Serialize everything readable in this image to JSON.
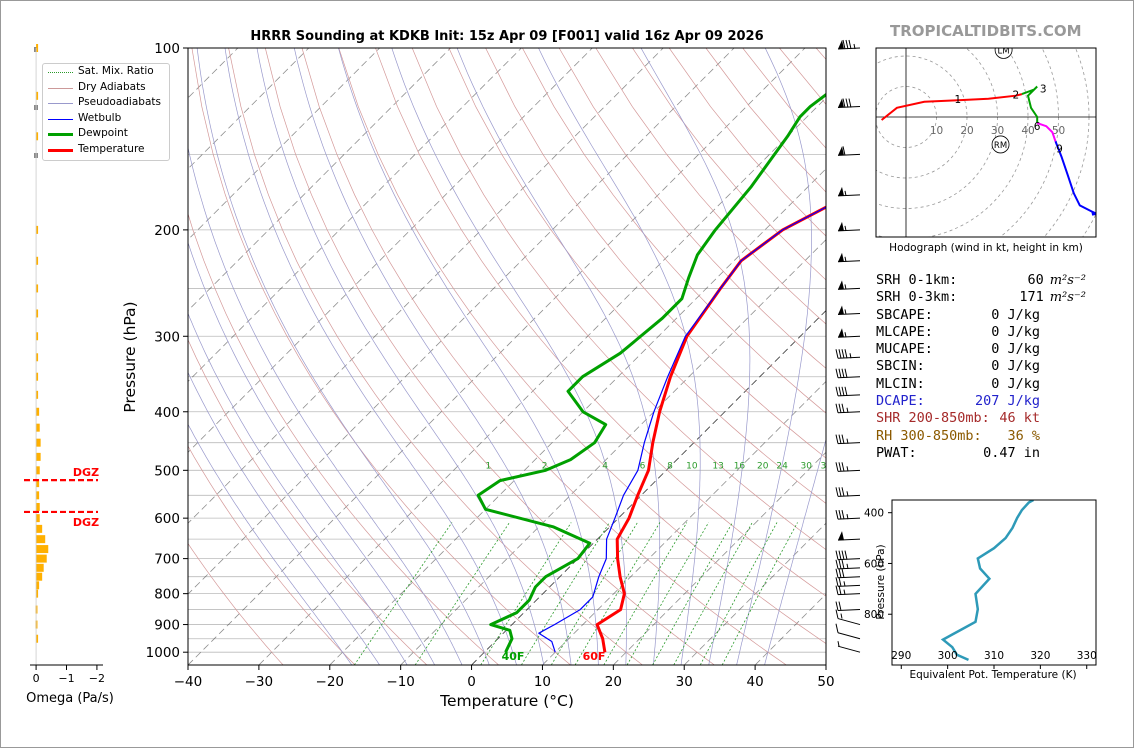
{
  "title": "HRRR Sounding at KDKB Init: 15z Apr 09 [F001] valid 16z Apr 09 2026",
  "brand": "TROPICALTIDBITS.COM",
  "colors": {
    "temperature": "#ff0000",
    "dewpoint": "#00a000",
    "wetbulb": "#0000ff",
    "omega": "#ffb000",
    "dgz": "#ff0000",
    "hodo_low": "#ff0000",
    "hodo_mid": "#00a000",
    "hodo_hi": "#ff00ff",
    "hodo_top": "#0000ff",
    "theta_e": "#2e9ab8"
  },
  "legend": [
    {
      "label": "Sat. Mix. Ratio",
      "color": "#2a9a2a",
      "style": "dotted"
    },
    {
      "label": "Dry Adiabats",
      "color": "#cc9999",
      "style": "solid"
    },
    {
      "label": "Pseudoadiabats",
      "color": "#9999cc",
      "style": "solid"
    },
    {
      "label": "Wetbulb",
      "color": "#0000ff",
      "style": "solid"
    },
    {
      "label": "Dewpoint",
      "color": "#00a000",
      "style": "bold"
    },
    {
      "label": "Temperature",
      "color": "#ff0000",
      "style": "bold"
    }
  ],
  "stats": [
    {
      "label": "SRH 0-1km:",
      "value": "60",
      "unit_html": "m²s⁻²",
      "color": "#000000"
    },
    {
      "label": "SRH 0-3km:",
      "value": "171",
      "unit_html": "m²s⁻²",
      "color": "#000000"
    },
    {
      "label": "SBCAPE:",
      "value": "0 J/kg",
      "unit_html": "",
      "color": "#000000"
    },
    {
      "label": "MLCAPE:",
      "value": "0 J/kg",
      "unit_html": "",
      "color": "#000000"
    },
    {
      "label": "MUCAPE:",
      "value": "0 J/kg",
      "unit_html": "",
      "color": "#000000"
    },
    {
      "label": "SBCIN:",
      "value": "0 J/kg",
      "unit_html": "",
      "color": "#000000"
    },
    {
      "label": "MLCIN:",
      "value": "0 J/kg",
      "unit_html": "",
      "color": "#000000"
    },
    {
      "label": "DCAPE:",
      "value": "207 J/kg",
      "unit_html": "",
      "color": "#2222cc"
    },
    {
      "label": "SHR 200-850mb:",
      "value": "46 kt",
      "unit_html": "",
      "color": "#a52a2a"
    },
    {
      "label": "RH 300-850mb:",
      "value": "36 %",
      "unit_html": "",
      "color": "#8b5a00"
    },
    {
      "label": "PWAT:",
      "value": "0.47 in",
      "unit_html": "",
      "color": "#000000"
    }
  ],
  "chart_data": [
    {
      "type": "line",
      "name": "skewt",
      "xlabel": "Temperature (°C)",
      "ylabel": "Pressure (hPa)",
      "xlim": [
        -40,
        50
      ],
      "ylim": [
        1050,
        100
      ],
      "x_ticks": [
        -40,
        -30,
        -20,
        -10,
        0,
        10,
        20,
        30,
        40,
        50
      ],
      "y_ticks": [
        100,
        200,
        300,
        400,
        500,
        600,
        700,
        800,
        900,
        1000
      ],
      "grid": true,
      "series": [
        {
          "name": "Temperature",
          "points": [
            [
              17,
              1000
            ],
            [
              14.8,
              950
            ],
            [
              12,
              900
            ],
            [
              13.2,
              850
            ],
            [
              11.5,
              800
            ],
            [
              8.5,
              750
            ],
            [
              5.6,
              700
            ],
            [
              2.8,
              650
            ],
            [
              1.5,
              600
            ],
            [
              -0.5,
              550
            ],
            [
              -2.5,
              500
            ],
            [
              -5.8,
              450
            ],
            [
              -9.2,
              400
            ],
            [
              -12.6,
              350
            ],
            [
              -16,
              300
            ],
            [
              -18,
              250
            ],
            [
              -19,
              225
            ],
            [
              -17.5,
              200
            ],
            [
              -12,
              170
            ],
            [
              -6,
              140
            ],
            [
              -4,
              125
            ],
            [
              -2,
              110
            ],
            [
              -1,
              100
            ]
          ]
        },
        {
          "name": "Dewpoint",
          "points": [
            [
              3,
              1000
            ],
            [
              2,
              950
            ],
            [
              0.5,
              920
            ],
            [
              -3,
              900
            ],
            [
              -1,
              860
            ],
            [
              -1,
              820
            ],
            [
              -2,
              780
            ],
            [
              -2,
              750
            ],
            [
              0,
              700
            ],
            [
              -0.5,
              660
            ],
            [
              -8,
              620
            ],
            [
              -20,
              580
            ],
            [
              -23,
              550
            ],
            [
              -22,
              520
            ],
            [
              -17,
              500
            ],
            [
              -15,
              480
            ],
            [
              -14,
              450
            ],
            [
              -15,
              420
            ],
            [
              -20,
              400
            ],
            [
              -25,
              370
            ],
            [
              -25,
              350
            ],
            [
              -23,
              320
            ],
            [
              -22,
              280
            ],
            [
              -22,
              260
            ],
            [
              -24,
              240
            ],
            [
              -26,
              220
            ],
            [
              -27,
              200
            ],
            [
              -28,
              170
            ],
            [
              -30,
              140
            ],
            [
              -31,
              130
            ],
            [
              -31,
              125
            ],
            [
              -30,
              115
            ],
            [
              -29,
              105
            ],
            [
              -28,
              100
            ]
          ]
        },
        {
          "name": "Wetbulb",
          "points": [
            [
              10,
              1000
            ],
            [
              8,
              960
            ],
            [
              5,
              930
            ],
            [
              6,
              900
            ],
            [
              7.5,
              850
            ],
            [
              7.5,
              810
            ],
            [
              5.5,
              750
            ],
            [
              4,
              700
            ],
            [
              1.3,
              650
            ],
            [
              -0.5,
              600
            ],
            [
              -2.5,
              550
            ],
            [
              -4,
              500
            ],
            [
              -7,
              450
            ],
            [
              -10,
              400
            ],
            [
              -13,
              350
            ],
            [
              -16.2,
              300
            ],
            [
              -18,
              250
            ],
            [
              -19,
              225
            ],
            [
              -17.5,
              200
            ],
            [
              -12,
              170
            ],
            [
              -6,
              140
            ],
            [
              -4,
              125
            ],
            [
              -2,
              110
            ],
            [
              -1,
              100
            ]
          ]
        }
      ],
      "mixing_ratio_labels": [
        "1",
        "2",
        "4",
        "6",
        "8",
        "10",
        "13",
        "16",
        "20",
        "24",
        "30",
        "36"
      ],
      "annotations": [
        "40F",
        "60F"
      ],
      "winds": [
        {
          "p": 100,
          "dir": 265,
          "spd": 85
        },
        {
          "p": 125,
          "dir": 265,
          "spd": 80
        },
        {
          "p": 150,
          "dir": 262,
          "spd": 60
        },
        {
          "p": 175,
          "dir": 262,
          "spd": 55
        },
        {
          "p": 200,
          "dir": 262,
          "spd": 55
        },
        {
          "p": 225,
          "dir": 262,
          "spd": 55
        },
        {
          "p": 250,
          "dir": 262,
          "spd": 55
        },
        {
          "p": 275,
          "dir": 262,
          "spd": 55
        },
        {
          "p": 300,
          "dir": 262,
          "spd": 55
        },
        {
          "p": 325,
          "dir": 265,
          "spd": 45
        },
        {
          "p": 350,
          "dir": 265,
          "spd": 40
        },
        {
          "p": 375,
          "dir": 265,
          "spd": 40
        },
        {
          "p": 400,
          "dir": 265,
          "spd": 35
        },
        {
          "p": 450,
          "dir": 265,
          "spd": 35
        },
        {
          "p": 500,
          "dir": 265,
          "spd": 35
        },
        {
          "p": 550,
          "dir": 265,
          "spd": 35
        },
        {
          "p": 600,
          "dir": 265,
          "spd": 35
        },
        {
          "p": 650,
          "dir": 265,
          "spd": 50
        },
        {
          "p": 700,
          "dir": 265,
          "spd": 40
        },
        {
          "p": 725,
          "dir": 265,
          "spd": 35
        },
        {
          "p": 750,
          "dir": 262,
          "spd": 30
        },
        {
          "p": 775,
          "dir": 262,
          "spd": 25
        },
        {
          "p": 800,
          "dir": 262,
          "spd": 25
        },
        {
          "p": 850,
          "dir": 262,
          "spd": 20
        },
        {
          "p": 900,
          "dir": 240,
          "spd": 15
        },
        {
          "p": 950,
          "dir": 220,
          "spd": 10
        },
        {
          "p": 1000,
          "dir": 200,
          "spd": 5
        }
      ]
    },
    {
      "type": "bar",
      "name": "omega",
      "xlabel": "Omega (Pa/s)",
      "x_ticks": [
        "0",
        "−1",
        "−2"
      ],
      "xlim": [
        0.2,
        -2.2
      ],
      "dgz_label": "DGZ",
      "dgz_levels": [
        519,
        586
      ],
      "levels": [
        100,
        120,
        140,
        200,
        225,
        250,
        275,
        300,
        325,
        350,
        375,
        400,
        425,
        450,
        475,
        500,
        525,
        550,
        575,
        600,
        625,
        650,
        675,
        700,
        725,
        750,
        775,
        800,
        850,
        900,
        950
      ],
      "values": [
        -0.04,
        -0.04,
        -0.04,
        -0.04,
        -0.04,
        -0.04,
        -0.04,
        -0.04,
        -0.04,
        -0.04,
        -0.05,
        -0.1,
        -0.12,
        -0.15,
        -0.15,
        -0.12,
        -0.1,
        -0.1,
        -0.12,
        -0.12,
        -0.2,
        -0.3,
        -0.4,
        -0.35,
        -0.25,
        -0.2,
        -0.1,
        -0.05,
        0.02,
        0.02,
        -0.02
      ]
    },
    {
      "type": "line",
      "name": "hodograph",
      "caption": "Hodograph (wind in kt, height in km)",
      "ring_labels": [
        "10",
        "20",
        "30",
        "40",
        "50"
      ],
      "markers": [
        "LM",
        "RM"
      ],
      "height_labels": [
        "1",
        "2",
        "3",
        "6",
        "9"
      ],
      "series": [
        {
          "name": "0-3km",
          "points": [
            [
              -8,
              -1
            ],
            [
              -3,
              3
            ],
            [
              6,
              5
            ],
            [
              17,
              5.5
            ],
            [
              27,
              6
            ],
            [
              36,
              7
            ],
            [
              38,
              7.5
            ]
          ]
        },
        {
          "name": "3-6km",
          "points": [
            [
              38,
              7.5
            ],
            [
              42,
              9
            ],
            [
              43,
              10
            ],
            [
              40,
              7
            ],
            [
              41,
              3
            ],
            [
              43,
              0
            ],
            [
              43,
              -2
            ]
          ]
        },
        {
          "name": "6-9km",
          "points": [
            [
              43,
              -2
            ],
            [
              46,
              -3
            ],
            [
              48,
              -5
            ],
            [
              49,
              -8
            ]
          ]
        },
        {
          "name": "9+km",
          "points": [
            [
              49,
              -8
            ],
            [
              51,
              -13
            ],
            [
              53,
              -19
            ],
            [
              55,
              -25
            ],
            [
              57,
              -29
            ],
            [
              61,
              -31
            ],
            [
              63,
              -32
            ]
          ]
        }
      ],
      "marker_positions": [
        [
          32,
          22
        ],
        [
          31,
          -9
        ]
      ],
      "height_points": [
        [
          17,
          5.5
        ],
        [
          36,
          7
        ],
        [
          45,
          9
        ],
        [
          43,
          -2
        ],
        [
          49,
          -8
        ]
      ]
    },
    {
      "type": "line",
      "name": "theta_e",
      "xlabel": "Equivalent Pot. Temperature (K)",
      "ylabel": "Pressure (hPa)",
      "x_ticks": [
        290,
        300,
        310,
        320,
        330
      ],
      "y_ticks": [
        400,
        600,
        800
      ],
      "xlim": [
        288,
        332
      ],
      "ylim": [
        1000,
        350
      ],
      "series": [
        {
          "name": "Theta-E",
          "points": [
            [
              304.5,
              980
            ],
            [
              302,
              960
            ],
            [
              301,
              930
            ],
            [
              299,
              900
            ],
            [
              301,
              880
            ],
            [
              303,
              860
            ],
            [
              306,
              830
            ],
            [
              306.5,
              780
            ],
            [
              306,
              720
            ],
            [
              309,
              660
            ],
            [
              307,
              620
            ],
            [
              306.5,
              580
            ],
            [
              310,
              540
            ],
            [
              312.5,
              500
            ],
            [
              314,
              460
            ],
            [
              315,
              420
            ],
            [
              316,
              390
            ],
            [
              317.5,
              360
            ],
            [
              318.5,
              350
            ]
          ]
        }
      ]
    }
  ]
}
